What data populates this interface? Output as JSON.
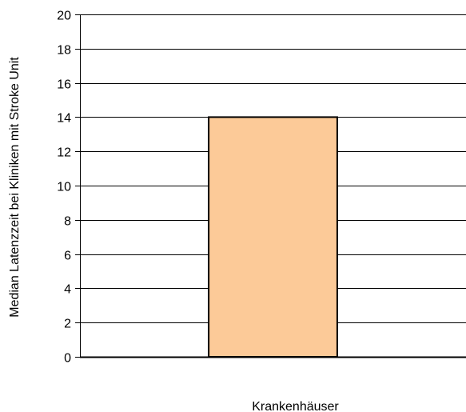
{
  "chart_data": {
    "type": "bar",
    "categories": [
      ""
    ],
    "values": [
      14
    ],
    "title": "",
    "xlabel": "Krankenhäuser",
    "ylabel": "Median Latenzzeit bei Kliniken mit Stroke Unit",
    "ylim": [
      0,
      20
    ],
    "yticks": [
      0,
      2,
      4,
      6,
      8,
      10,
      12,
      14,
      16,
      18,
      20
    ],
    "grid": true,
    "legend": "none",
    "colors": {
      "bar_fill": "#FCCA98",
      "bar_stroke": "#000000",
      "grid": "#000000",
      "axis": "#000000"
    }
  }
}
